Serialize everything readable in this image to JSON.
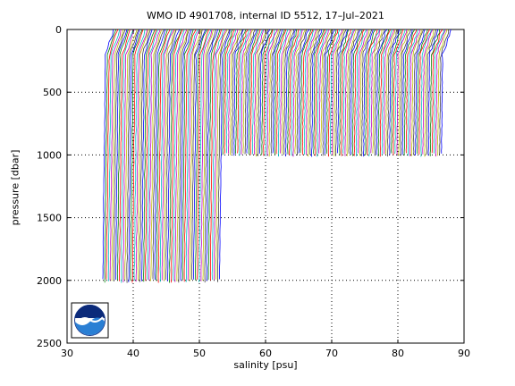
{
  "chart_data": {
    "type": "line",
    "title": "WMO ID 4901708, internal ID 5512, 17–Jul–2021",
    "xlabel": "salinity [psu]",
    "ylabel": "pressure [dbar]",
    "xlim": [
      30,
      90
    ],
    "ylim": [
      2500,
      0
    ],
    "y_reversed": true,
    "xticks": [
      30,
      40,
      50,
      60,
      70,
      80,
      90
    ],
    "yticks": [
      0,
      500,
      1000,
      1500,
      2000,
      2500
    ],
    "grid": true,
    "grid_style": "dotted",
    "logo": "noaa-logo",
    "series_colors": [
      "#0000ff",
      "#008000",
      "#ff0000",
      "#00bfbf",
      "#bf00bf",
      "#bfbf00",
      "#404040"
    ],
    "profile_summary": {
      "profile_count": 183,
      "surface_salinity_start": 35.5,
      "salinity_offset_per_profile": 0.28,
      "deep_profiles_max_pressure": 2000,
      "deep_profiles_last_offset_salinity": 53.2,
      "shallow_profiles_max_pressure": 1000
    }
  }
}
